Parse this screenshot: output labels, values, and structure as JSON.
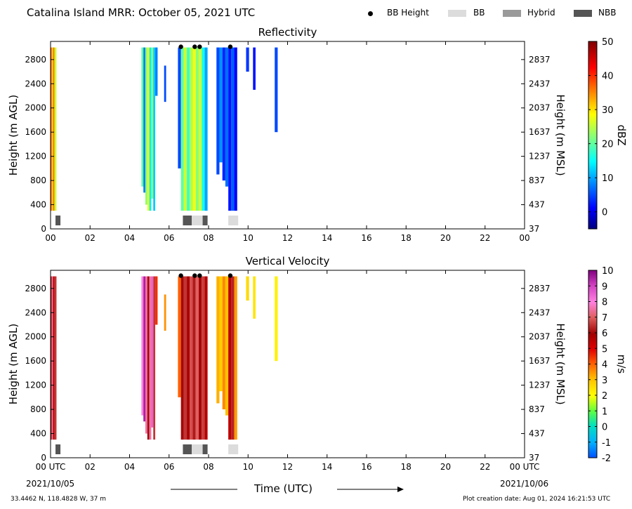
{
  "header": {
    "title": "Catalina Island MRR:  October 05, 2021 UTC",
    "legend": [
      {
        "label": "BB Height",
        "marker": "dot",
        "color": "#000000"
      },
      {
        "label": "BB",
        "marker": "box",
        "color": "#dcdcdc"
      },
      {
        "label": "Hybrid",
        "marker": "box",
        "color": "#9a9a9a"
      },
      {
        "label": "NBB",
        "marker": "box",
        "color": "#555555"
      }
    ]
  },
  "footer": {
    "location": "33.4462 N, 118.4828 W, 37 m",
    "creation": "Plot creation date: Aug 01, 2024 16:21:53 UTC",
    "start_date": "2021/10/05",
    "end_date": "2021/10/06",
    "xlabel": "Time (UTC)"
  },
  "chart_data": [
    {
      "type": "heatmap",
      "title": "Reflectivity",
      "ylabel_left": "Height (m AGL)",
      "ylabel_right": "Height (m MSL)",
      "xlabel": "Time (UTC)",
      "xlim": [
        0,
        24
      ],
      "ylim": [
        0,
        3100
      ],
      "x_ticks": [
        "00",
        "02",
        "04",
        "06",
        "08",
        "10",
        "12",
        "14",
        "16",
        "18",
        "20",
        "22",
        "00"
      ],
      "y_ticks": [
        0,
        400,
        800,
        1200,
        1600,
        2000,
        2400,
        2800
      ],
      "y_ticks_right": [
        37,
        437,
        837,
        1237,
        1637,
        2037,
        2437,
        2837
      ],
      "colorbar": {
        "label": "dBZ",
        "min": -5,
        "max": 50,
        "ticks": [
          0,
          10,
          20,
          30,
          40,
          50
        ],
        "scale": "jet"
      },
      "bb_height_points": [
        [
          6.6,
          3000
        ],
        [
          7.3,
          3000
        ],
        [
          7.55,
          3000
        ],
        [
          9.1,
          3000
        ]
      ],
      "bb_bars": [
        {
          "start": 0.25,
          "end": 0.5,
          "type": "NBB"
        },
        {
          "start": 6.7,
          "end": 7.15,
          "type": "NBB"
        },
        {
          "start": 7.15,
          "end": 7.7,
          "type": "BB"
        },
        {
          "start": 7.7,
          "end": 7.95,
          "type": "NBB"
        },
        {
          "start": 9.0,
          "end": 9.5,
          "type": "BB"
        }
      ],
      "cells": [
        {
          "t_start": 0.0,
          "t_end": 0.06,
          "h_bottom": 300,
          "h_top": 3000,
          "value": 38
        },
        {
          "t_start": 0.06,
          "t_end": 0.12,
          "h_bottom": 300,
          "h_top": 3000,
          "value": 30
        },
        {
          "t_start": 0.12,
          "t_end": 0.2,
          "h_bottom": 300,
          "h_top": 3000,
          "value": 36
        },
        {
          "t_start": 0.2,
          "t_end": 0.3,
          "h_bottom": 300,
          "h_top": 3000,
          "value": 26
        },
        {
          "t_start": 4.6,
          "t_end": 4.7,
          "h_bottom": 700,
          "h_top": 3000,
          "value": 20
        },
        {
          "t_start": 4.7,
          "t_end": 4.8,
          "h_bottom": 600,
          "h_top": 3000,
          "value": 8
        },
        {
          "t_start": 4.8,
          "t_end": 4.9,
          "h_bottom": 400,
          "h_top": 3000,
          "value": 22
        },
        {
          "t_start": 4.9,
          "t_end": 5.0,
          "h_bottom": 300,
          "h_top": 3000,
          "value": 28
        },
        {
          "t_start": 5.0,
          "t_end": 5.1,
          "h_bottom": 300,
          "h_top": 3000,
          "value": 14
        },
        {
          "t_start": 5.1,
          "t_end": 5.2,
          "h_bottom": 500,
          "h_top": 3000,
          "value": 22
        },
        {
          "t_start": 5.2,
          "t_end": 5.3,
          "h_bottom": 300,
          "h_top": 3000,
          "value": 12
        },
        {
          "t_start": 5.3,
          "t_end": 5.42,
          "h_bottom": 2200,
          "h_top": 3000,
          "value": 8
        },
        {
          "t_start": 5.75,
          "t_end": 5.85,
          "h_bottom": 2100,
          "h_top": 2700,
          "value": 5
        },
        {
          "t_start": 6.45,
          "t_end": 6.6,
          "h_bottom": 1000,
          "h_top": 3000,
          "value": 5
        },
        {
          "t_start": 6.6,
          "t_end": 6.75,
          "h_bottom": 300,
          "h_top": 3000,
          "value": 20
        },
        {
          "t_start": 6.75,
          "t_end": 6.9,
          "h_bottom": 300,
          "h_top": 3000,
          "value": 26
        },
        {
          "t_start": 6.9,
          "t_end": 7.05,
          "h_bottom": 300,
          "h_top": 3000,
          "value": 18
        },
        {
          "t_start": 7.05,
          "t_end": 7.2,
          "h_bottom": 300,
          "h_top": 3000,
          "value": 24
        },
        {
          "t_start": 7.2,
          "t_end": 7.35,
          "h_bottom": 300,
          "h_top": 3000,
          "value": 28
        },
        {
          "t_start": 7.35,
          "t_end": 7.5,
          "h_bottom": 300,
          "h_top": 3000,
          "value": 22
        },
        {
          "t_start": 7.5,
          "t_end": 7.65,
          "h_bottom": 300,
          "h_top": 3000,
          "value": 26
        },
        {
          "t_start": 7.65,
          "t_end": 7.8,
          "h_bottom": 300,
          "h_top": 3000,
          "value": 16
        },
        {
          "t_start": 7.8,
          "t_end": 7.95,
          "h_bottom": 300,
          "h_top": 3000,
          "value": 10
        },
        {
          "t_start": 8.4,
          "t_end": 8.55,
          "h_bottom": 900,
          "h_top": 3000,
          "value": 5
        },
        {
          "t_start": 8.55,
          "t_end": 8.7,
          "h_bottom": 1100,
          "h_top": 3000,
          "value": 9
        },
        {
          "t_start": 8.7,
          "t_end": 8.85,
          "h_bottom": 800,
          "h_top": 3000,
          "value": 3
        },
        {
          "t_start": 8.85,
          "t_end": 9.0,
          "h_bottom": 700,
          "h_top": 3000,
          "value": 7
        },
        {
          "t_start": 9.0,
          "t_end": 9.15,
          "h_bottom": 300,
          "h_top": 3000,
          "value": 2
        },
        {
          "t_start": 9.15,
          "t_end": 9.3,
          "h_bottom": 300,
          "h_top": 3000,
          "value": 6
        },
        {
          "t_start": 9.3,
          "t_end": 9.45,
          "h_bottom": 300,
          "h_top": 3000,
          "value": 1
        },
        {
          "t_start": 9.9,
          "t_end": 10.05,
          "h_bottom": 2600,
          "h_top": 3000,
          "value": 4
        },
        {
          "t_start": 10.25,
          "t_end": 10.38,
          "h_bottom": 2300,
          "h_top": 3000,
          "value": 2
        },
        {
          "t_start": 11.35,
          "t_end": 11.5,
          "h_bottom": 1600,
          "h_top": 3000,
          "value": 5
        }
      ]
    },
    {
      "type": "heatmap",
      "title": "Vertical Velocity",
      "ylabel_left": "Height (m AGL)",
      "ylabel_right": "Height (m MSL)",
      "xlabel": "Time (UTC)",
      "xlim": [
        0,
        24
      ],
      "ylim": [
        0,
        3100
      ],
      "x_ticks": [
        "00 UTC",
        "02",
        "04",
        "06",
        "08",
        "10",
        "12",
        "14",
        "16",
        "18",
        "20",
        "22",
        "00 UTC"
      ],
      "y_ticks": [
        0,
        400,
        800,
        1200,
        1600,
        2000,
        2400,
        2800
      ],
      "y_ticks_right": [
        37,
        437,
        837,
        1237,
        1637,
        2037,
        2437,
        2837
      ],
      "colorbar": {
        "label": "m/s",
        "min": -2,
        "max": 10,
        "ticks": [
          -2,
          -1,
          0,
          1,
          2,
          3,
          4,
          5,
          6,
          7,
          8,
          9,
          10
        ],
        "scale": "velocity"
      },
      "bb_height_points": [
        [
          6.6,
          3000
        ],
        [
          7.3,
          3000
        ],
        [
          7.55,
          3000
        ],
        [
          9.1,
          3000
        ]
      ],
      "bb_bars": [
        {
          "start": 0.25,
          "end": 0.5,
          "type": "NBB"
        },
        {
          "start": 6.7,
          "end": 7.15,
          "type": "NBB"
        },
        {
          "start": 7.15,
          "end": 7.7,
          "type": "BB"
        },
        {
          "start": 7.7,
          "end": 7.95,
          "type": "NBB"
        },
        {
          "start": 9.0,
          "end": 9.5,
          "type": "BB"
        }
      ],
      "cells": [
        {
          "t_start": 0.0,
          "t_end": 0.06,
          "h_bottom": 300,
          "h_top": 3000,
          "value": 6
        },
        {
          "t_start": 0.06,
          "t_end": 0.12,
          "h_bottom": 300,
          "h_top": 3000,
          "value": 7.5
        },
        {
          "t_start": 0.12,
          "t_end": 0.2,
          "h_bottom": 300,
          "h_top": 3000,
          "value": 5.5
        },
        {
          "t_start": 0.2,
          "t_end": 0.3,
          "h_bottom": 300,
          "h_top": 3000,
          "value": 6.5
        },
        {
          "t_start": 4.6,
          "t_end": 4.7,
          "h_bottom": 700,
          "h_top": 3000,
          "value": 8
        },
        {
          "t_start": 4.7,
          "t_end": 4.8,
          "h_bottom": 600,
          "h_top": 3000,
          "value": 9.5
        },
        {
          "t_start": 4.8,
          "t_end": 4.9,
          "h_bottom": 400,
          "h_top": 3000,
          "value": 7.5
        },
        {
          "t_start": 4.9,
          "t_end": 5.0,
          "h_bottom": 300,
          "h_top": 3000,
          "value": 6
        },
        {
          "t_start": 5.0,
          "t_end": 5.1,
          "h_bottom": 300,
          "h_top": 3000,
          "value": 7.5
        },
        {
          "t_start": 5.1,
          "t_end": 5.2,
          "h_bottom": 500,
          "h_top": 3000,
          "value": 8.5
        },
        {
          "t_start": 5.2,
          "t_end": 5.3,
          "h_bottom": 300,
          "h_top": 3000,
          "value": 6.5
        },
        {
          "t_start": 5.3,
          "t_end": 5.42,
          "h_bottom": 2200,
          "h_top": 3000,
          "value": 4.5
        },
        {
          "t_start": 5.75,
          "t_end": 5.85,
          "h_bottom": 2100,
          "h_top": 2700,
          "value": 3.5
        },
        {
          "t_start": 6.45,
          "t_end": 6.6,
          "h_bottom": 1000,
          "h_top": 3000,
          "value": 4
        },
        {
          "t_start": 6.6,
          "t_end": 6.75,
          "h_bottom": 300,
          "h_top": 3000,
          "value": 6
        },
        {
          "t_start": 6.75,
          "t_end": 6.9,
          "h_bottom": 300,
          "h_top": 3000,
          "value": 6.5
        },
        {
          "t_start": 6.9,
          "t_end": 7.05,
          "h_bottom": 300,
          "h_top": 3000,
          "value": 5.8
        },
        {
          "t_start": 7.05,
          "t_end": 7.2,
          "h_bottom": 300,
          "h_top": 3000,
          "value": 6.8
        },
        {
          "t_start": 7.2,
          "t_end": 7.35,
          "h_bottom": 300,
          "h_top": 3000,
          "value": 6.2
        },
        {
          "t_start": 7.35,
          "t_end": 7.5,
          "h_bottom": 300,
          "h_top": 3000,
          "value": 7
        },
        {
          "t_start": 7.5,
          "t_end": 7.65,
          "h_bottom": 300,
          "h_top": 3000,
          "value": 6
        },
        {
          "t_start": 7.65,
          "t_end": 7.8,
          "h_bottom": 300,
          "h_top": 3000,
          "value": 6.6
        },
        {
          "t_start": 7.8,
          "t_end": 7.95,
          "h_bottom": 300,
          "h_top": 3000,
          "value": 5.6
        },
        {
          "t_start": 8.4,
          "t_end": 8.55,
          "h_bottom": 900,
          "h_top": 3000,
          "value": 3.2
        },
        {
          "t_start": 8.55,
          "t_end": 8.7,
          "h_bottom": 1100,
          "h_top": 3000,
          "value": 2.8
        },
        {
          "t_start": 8.7,
          "t_end": 8.85,
          "h_bottom": 800,
          "h_top": 3000,
          "value": 3.6
        },
        {
          "t_start": 8.85,
          "t_end": 9.0,
          "h_bottom": 700,
          "h_top": 3000,
          "value": 3
        },
        {
          "t_start": 9.0,
          "t_end": 9.15,
          "h_bottom": 300,
          "h_top": 3000,
          "value": 5.5
        },
        {
          "t_start": 9.15,
          "t_end": 9.3,
          "h_bottom": 300,
          "h_top": 3000,
          "value": 6.3
        },
        {
          "t_start": 9.3,
          "t_end": 9.45,
          "h_bottom": 300,
          "h_top": 3000,
          "value": 3.4
        },
        {
          "t_start": 9.9,
          "t_end": 10.05,
          "h_bottom": 2600,
          "h_top": 3000,
          "value": 2.6
        },
        {
          "t_start": 10.25,
          "t_end": 10.38,
          "h_bottom": 2300,
          "h_top": 3000,
          "value": 2.4
        },
        {
          "t_start": 11.35,
          "t_end": 11.5,
          "h_bottom": 1600,
          "h_top": 3000,
          "value": 2.2
        }
      ]
    }
  ]
}
